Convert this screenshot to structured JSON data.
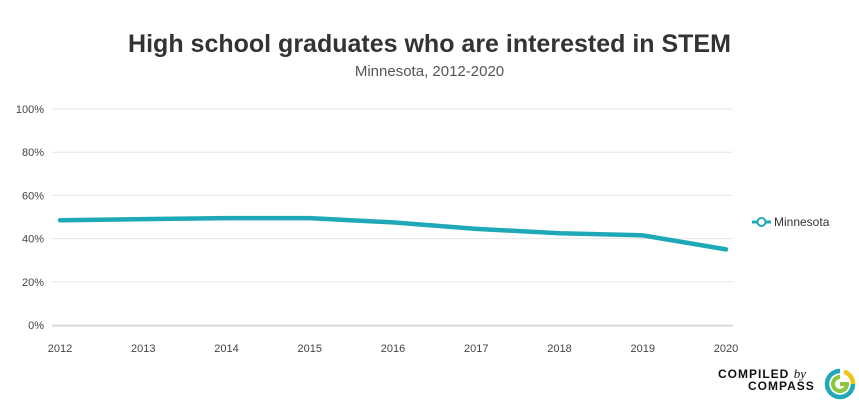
{
  "chart_data": {
    "type": "line",
    "title": "High school graduates who are interested in STEM",
    "subtitle": "Minnesota, 2012-2020",
    "xlabel": "",
    "ylabel": "",
    "categories": [
      "2012",
      "2013",
      "2014",
      "2015",
      "2016",
      "2017",
      "2018",
      "2019",
      "2020"
    ],
    "series": [
      {
        "name": "Minnesota",
        "color": "#1fa9b8",
        "values": [
          48.5,
          49,
          49.5,
          49.5,
          47.5,
          44.5,
          42.5,
          41.5,
          35
        ]
      }
    ],
    "ylim": [
      0,
      100
    ],
    "yticks": [
      "0%",
      "20%",
      "40%",
      "60%",
      "80%",
      "100%"
    ],
    "ytick_values": [
      0,
      20,
      40,
      60,
      80,
      100
    ],
    "grid": true,
    "legend_position": "right"
  },
  "logo": {
    "line1": "COMPILED",
    "by": "by",
    "line2": "COMPASS"
  }
}
